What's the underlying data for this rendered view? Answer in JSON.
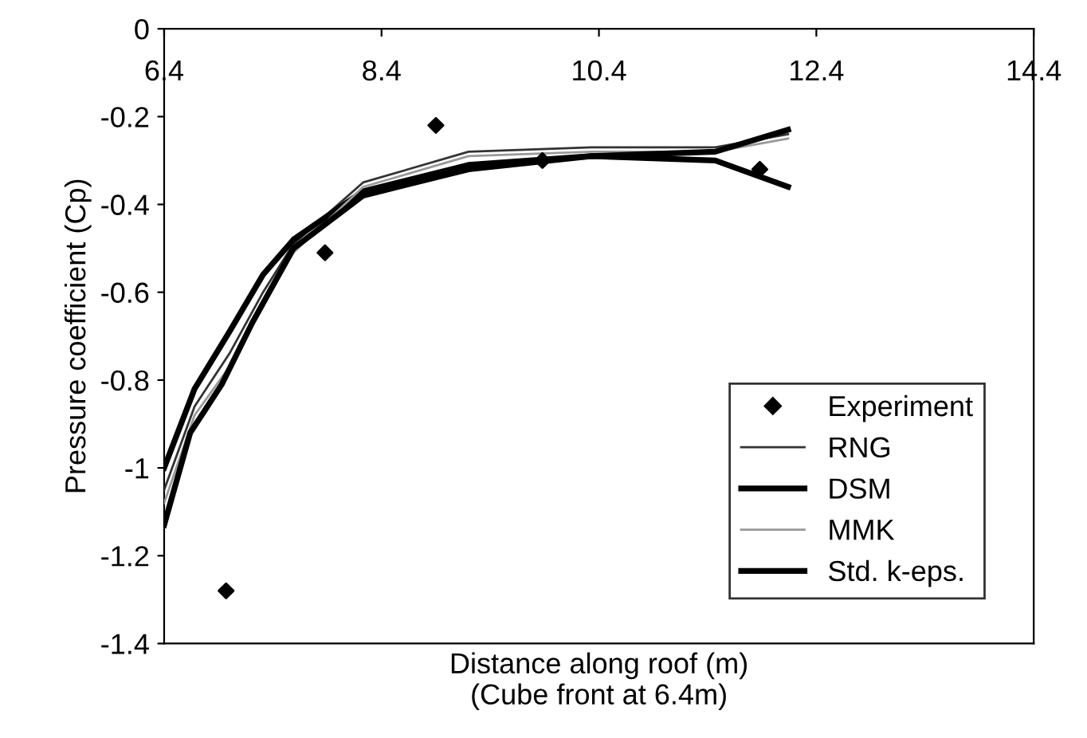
{
  "chart_data": {
    "type": "line",
    "xlabel": "Distance along roof (m)\n(Cube front at 6.4m)",
    "ylabel": "Pressure coefficient (Cp)",
    "xlim": [
      6.4,
      14.4
    ],
    "xticks": [
      6.4,
      8.4,
      10.4,
      12.4,
      14.4
    ],
    "ylim": [
      -1.4,
      0
    ],
    "yticks": [
      {
        "value": 0,
        "label": "0"
      },
      -0.2,
      -0.4,
      -0.6,
      -0.8,
      {
        "value": -1,
        "label": "-1"
      },
      -1.2,
      -1.4
    ],
    "grid": false,
    "legend": "bottom right",
    "series": [
      {
        "name": "Experiment",
        "type": "scatter",
        "marker": "diamond",
        "color": "#000000",
        "x": [
          6.97,
          7.88,
          8.9,
          9.88,
          11.88
        ],
        "values": [
          -1.28,
          -0.51,
          -0.22,
          -0.3,
          -0.32
        ]
      },
      {
        "name": "RNG",
        "color": "#333333",
        "x": [
          6.4,
          6.68,
          7.0,
          7.31,
          7.59,
          8.23,
          9.2,
          10.33,
          11.47,
          12.14
        ],
        "values": [
          -1.05,
          -0.86,
          -0.74,
          -0.6,
          -0.49,
          -0.35,
          -0.28,
          -0.27,
          -0.27,
          -0.24
        ]
      },
      {
        "name": "DSM",
        "color": "#000000",
        "x": [
          6.4,
          6.68,
          7.0,
          7.31,
          7.59,
          8.23,
          9.2,
          10.33,
          11.47,
          12.14
        ],
        "values": [
          -1.0,
          -0.82,
          -0.69,
          -0.56,
          -0.48,
          -0.37,
          -0.31,
          -0.29,
          -0.3,
          -0.36
        ]
      },
      {
        "name": "MMK",
        "color": "#999999",
        "x": [
          6.4,
          6.68,
          7.0,
          7.31,
          7.59,
          8.23,
          9.2,
          10.33,
          11.47,
          12.14
        ],
        "values": [
          -1.08,
          -0.88,
          -0.77,
          -0.63,
          -0.51,
          -0.36,
          -0.29,
          -0.28,
          -0.28,
          -0.25
        ]
      },
      {
        "name": "Std. k-eps.",
        "color": "#000000",
        "x": [
          6.4,
          6.64,
          6.93,
          7.21,
          7.59,
          8.23,
          9.2,
          10.33,
          11.47,
          12.14
        ],
        "values": [
          -1.13,
          -0.92,
          -0.81,
          -0.67,
          -0.5,
          -0.38,
          -0.32,
          -0.29,
          -0.28,
          -0.23
        ]
      }
    ]
  }
}
